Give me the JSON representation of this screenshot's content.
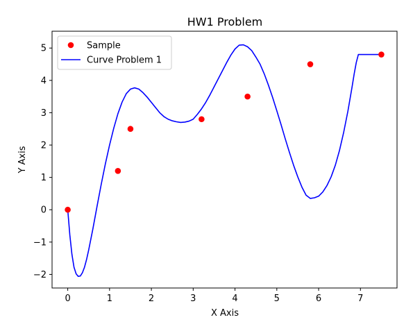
{
  "chart_data": {
    "type": "line",
    "title": "HW1 Problem",
    "xlabel": "X Axis",
    "ylabel": "Y Axis",
    "xlim": [
      -0.375,
      7.875
    ],
    "ylim": [
      -2.42,
      5.52
    ],
    "xticks": [
      0,
      1,
      2,
      3,
      4,
      5,
      6,
      7
    ],
    "yticks": [
      -2,
      -1,
      0,
      1,
      2,
      3,
      4,
      5
    ],
    "xtick_labels": [
      "0",
      "1",
      "2",
      "3",
      "4",
      "5",
      "6",
      "7"
    ],
    "ytick_labels": [
      "−2",
      "−1",
      "0",
      "1",
      "2",
      "3",
      "4",
      "5"
    ],
    "grid": false,
    "legend_position": "top-left",
    "series": [
      {
        "name": "Sample",
        "kind": "scatter",
        "color": "#ff0000",
        "x": [
          0,
          1.2,
          1.5,
          3.2,
          4.3,
          5.8,
          7.5
        ],
        "y": [
          0,
          1.2,
          2.5,
          2.8,
          3.5,
          4.5,
          4.8
        ]
      },
      {
        "name": "Curve Problem 1",
        "kind": "line",
        "color": "#0000ff",
        "x": [
          0,
          0.05,
          0.1,
          0.15,
          0.2,
          0.25,
          0.3,
          0.35,
          0.4,
          0.45,
          0.5,
          0.6,
          0.7,
          0.8,
          0.9,
          1.0,
          1.1,
          1.2,
          1.3,
          1.4,
          1.5,
          1.6,
          1.7,
          1.8,
          1.9,
          2.0,
          2.1,
          2.2,
          2.3,
          2.4,
          2.5,
          2.6,
          2.7,
          2.8,
          2.9,
          3.0,
          3.1,
          3.2,
          3.3,
          3.4,
          3.5,
          3.6,
          3.7,
          3.8,
          3.9,
          4.0,
          4.1,
          4.2,
          4.3,
          4.4,
          4.5,
          4.6,
          4.7,
          4.8,
          4.9,
          5.0,
          5.1,
          5.2,
          5.3,
          5.4,
          5.5,
          5.6,
          5.7,
          5.8,
          5.9,
          6.0,
          6.1,
          6.2,
          6.3,
          6.4,
          6.5,
          6.6,
          6.7,
          6.8,
          6.85,
          6.9,
          6.95,
          7.0,
          7.05,
          7.1,
          7.15,
          7.2,
          7.25,
          7.3,
          7.35,
          7.4,
          7.45,
          7.5
        ],
        "y": [
          0,
          -0.78,
          -1.38,
          -1.78,
          -1.98,
          -2.06,
          -2.05,
          -1.95,
          -1.78,
          -1.54,
          -1.25,
          -0.6,
          0.1,
          0.78,
          1.42,
          2.0,
          2.52,
          2.97,
          3.33,
          3.59,
          3.73,
          3.77,
          3.73,
          3.62,
          3.48,
          3.32,
          3.16,
          3.0,
          2.88,
          2.8,
          2.75,
          2.72,
          2.7,
          2.71,
          2.74,
          2.8,
          2.95,
          3.12,
          3.32,
          3.55,
          3.8,
          4.05,
          4.3,
          4.55,
          4.78,
          4.97,
          5.09,
          5.1,
          5.04,
          4.92,
          4.72,
          4.5,
          4.2,
          3.85,
          3.47,
          3.06,
          2.64,
          2.2,
          1.78,
          1.38,
          1.02,
          0.7,
          0.45,
          0.35,
          0.37,
          0.42,
          0.55,
          0.75,
          1.02,
          1.38,
          1.84,
          2.4,
          3.05,
          3.8,
          4.2,
          4.55,
          4.8,
          4.8,
          4.8,
          4.8,
          4.8,
          4.8,
          4.8,
          4.8,
          4.8,
          4.8,
          4.8,
          4.8
        ]
      }
    ]
  }
}
